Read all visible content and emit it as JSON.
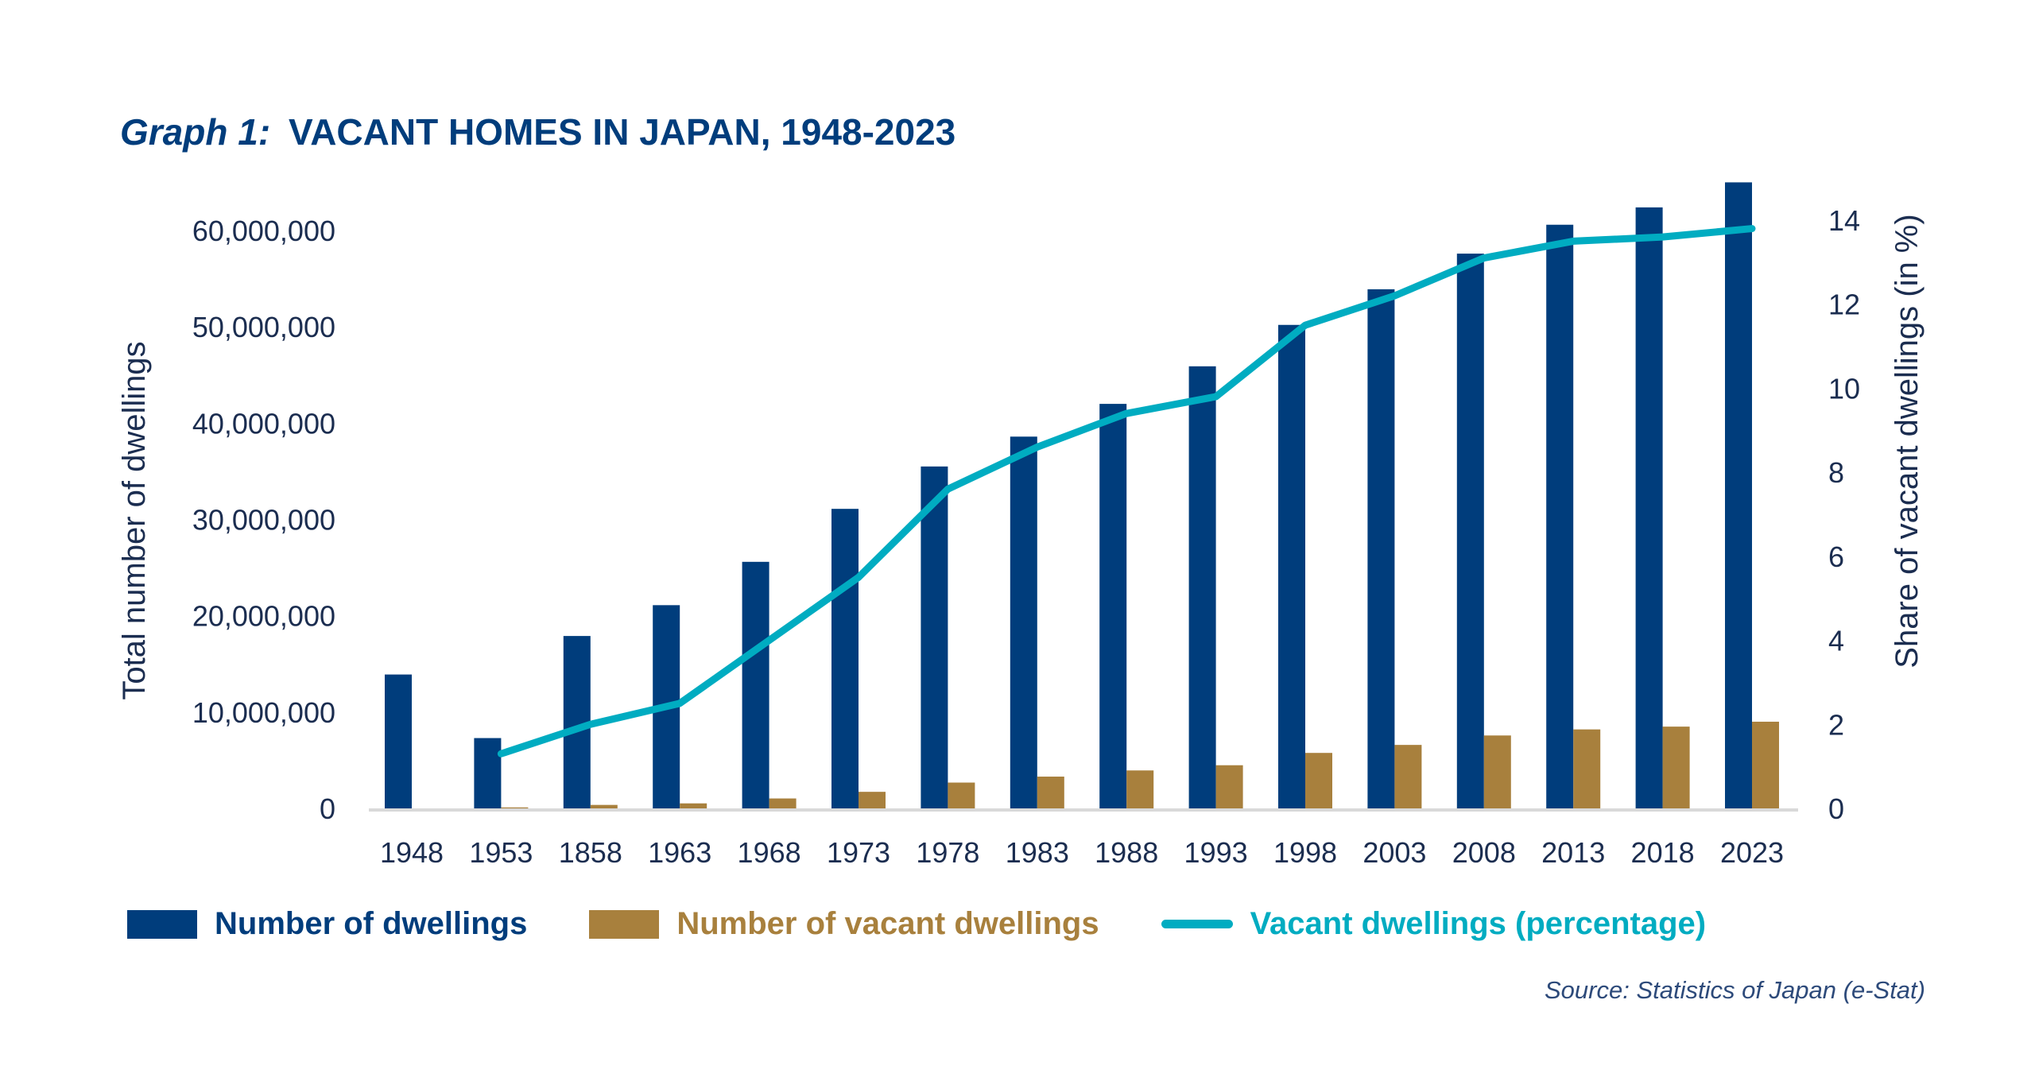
{
  "colors": {
    "title": "#003d7c",
    "dwellings": "#003d7c",
    "vacant": "#a8803d",
    "percentage": "#00acc1",
    "axis_text": "#1b2d50",
    "axis_line": "#d9d9d9",
    "source": "#2d4a7a"
  },
  "legend": [
    {
      "label": "Number of dwellings",
      "kind": "bar",
      "color_key": "dwellings"
    },
    {
      "label": "Number of vacant dwellings",
      "kind": "bar",
      "color_key": "vacant"
    },
    {
      "label": "Vacant dwellings (percentage)",
      "kind": "line",
      "color_key": "percentage"
    }
  ],
  "source": "Source: Statistics of Japan (e-Stat)",
  "chart_data": {
    "type": "bar",
    "title_prefix": "Graph 1:",
    "title": "VACANT HOMES IN JAPAN, 1948-2023",
    "xlabel": "",
    "ylabel": "Total number of dwellings",
    "y2label": "Share of vacant dwellings (in %)",
    "categories": [
      "1948",
      "1953",
      "1858",
      "1963",
      "1968",
      "1973",
      "1978",
      "1983",
      "1988",
      "1993",
      "1998",
      "2003",
      "2008",
      "2013",
      "2018",
      "2023"
    ],
    "ylim": [
      0,
      60000000
    ],
    "yticks": [
      0,
      10000000,
      20000000,
      30000000,
      40000000,
      50000000,
      60000000
    ],
    "ytick_labels": [
      "0",
      "10,000,000",
      "20,000,000",
      "30,000,000",
      "40,000,000",
      "50,000,000",
      "60,000,000"
    ],
    "y2lim": [
      0,
      14
    ],
    "y2ticks": [
      0,
      2,
      4,
      6,
      8,
      10,
      12,
      14
    ],
    "y2tick_labels": [
      "0",
      "2",
      "4",
      "6",
      "8",
      "10",
      "12",
      "14"
    ],
    "grid": false,
    "legend_position": "bottom",
    "series": [
      {
        "name": "Number of dwellings",
        "type": "bar",
        "axis": "left",
        "values": [
          13900000,
          7300000,
          17900000,
          21100000,
          25600000,
          31100000,
          35500000,
          38600000,
          42000000,
          45900000,
          50200000,
          53900000,
          57600000,
          60600000,
          62400000,
          65000000
        ]
      },
      {
        "name": "Number of vacant dwellings",
        "type": "bar",
        "axis": "left",
        "values": [
          0,
          100000,
          360000,
          520000,
          1030000,
          1720000,
          2680000,
          3300000,
          3940000,
          4480000,
          5760000,
          6590000,
          7570000,
          8200000,
          8490000,
          9000000
        ]
      },
      {
        "name": "Vacant dwellings (percentage)",
        "type": "line",
        "axis": "right",
        "values": [
          null,
          1.3,
          2.0,
          2.5,
          4.0,
          5.5,
          7.6,
          8.6,
          9.4,
          9.8,
          11.5,
          12.2,
          13.1,
          13.5,
          13.6,
          13.8
        ]
      }
    ]
  }
}
